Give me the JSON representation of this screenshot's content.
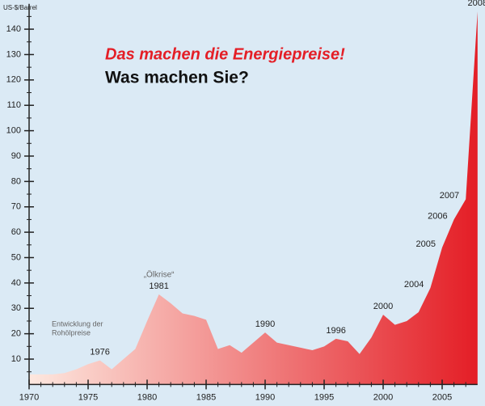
{
  "chart_data": {
    "type": "area",
    "title": "Das machen die Energiepreise!",
    "subtitle": "Was machen Sie?",
    "y_axis_label": "US-$/Barrel",
    "note": [
      "Entwicklung der",
      "Rohölpreise"
    ],
    "annotations": [
      {
        "text": "„Ölkrise“",
        "x": 1981
      }
    ],
    "x": [
      1970,
      1971,
      1972,
      1973,
      1974,
      1975,
      1976,
      1977,
      1978,
      1979,
      1980,
      1981,
      1982,
      1983,
      1984,
      1985,
      1986,
      1987,
      1988,
      1989,
      1990,
      1991,
      1992,
      1993,
      1994,
      1995,
      1996,
      1997,
      1998,
      1999,
      2000,
      2001,
      2002,
      2003,
      2004,
      2005,
      2006,
      2007,
      2008
    ],
    "values": [
      4,
      4,
      4,
      4.5,
      6,
      8,
      9.5,
      6,
      10,
      14,
      25,
      35.5,
      32,
      28,
      27,
      25.5,
      14,
      15.5,
      12.5,
      16.5,
      20.5,
      16.5,
      15.5,
      14.5,
      13.5,
      15,
      18,
      17,
      12,
      18.5,
      27.5,
      23.5,
      25,
      28.5,
      38,
      54,
      65,
      73,
      147
    ],
    "point_labels": [
      null,
      null,
      null,
      null,
      null,
      null,
      "1976",
      null,
      null,
      null,
      null,
      "1981",
      null,
      null,
      null,
      null,
      null,
      null,
      null,
      null,
      "1990",
      null,
      null,
      null,
      null,
      null,
      "1996",
      null,
      null,
      null,
      "2000",
      null,
      null,
      null,
      "2004",
      "2005",
      "2006",
      "2007",
      "2008"
    ],
    "gradient": [
      "#fde8df",
      "#e41e26"
    ],
    "background": "#dbeaf5",
    "xlim": [
      1970,
      2008
    ],
    "ylim": [
      0,
      150
    ],
    "xticks": [
      1970,
      1975,
      1980,
      1985,
      1990,
      1995,
      2000,
      2005
    ],
    "xminor_ticks": [
      1971,
      1972,
      1973,
      1974,
      1976,
      1977,
      1978,
      1979,
      1981,
      1982,
      1983,
      1984,
      1986,
      1987,
      1988,
      1989,
      1991,
      1992,
      1993,
      1994,
      1996,
      1997,
      1998,
      1999,
      2001,
      2002,
      2003,
      2004,
      2006,
      2007
    ],
    "yticks": [
      10,
      20,
      30,
      40,
      50,
      60,
      70,
      80,
      90,
      100,
      110,
      120,
      130,
      140
    ],
    "yminor_ticks": [
      5,
      15,
      25,
      35,
      45,
      55,
      65,
      75,
      85,
      95,
      105,
      115,
      125,
      135,
      145
    ]
  }
}
